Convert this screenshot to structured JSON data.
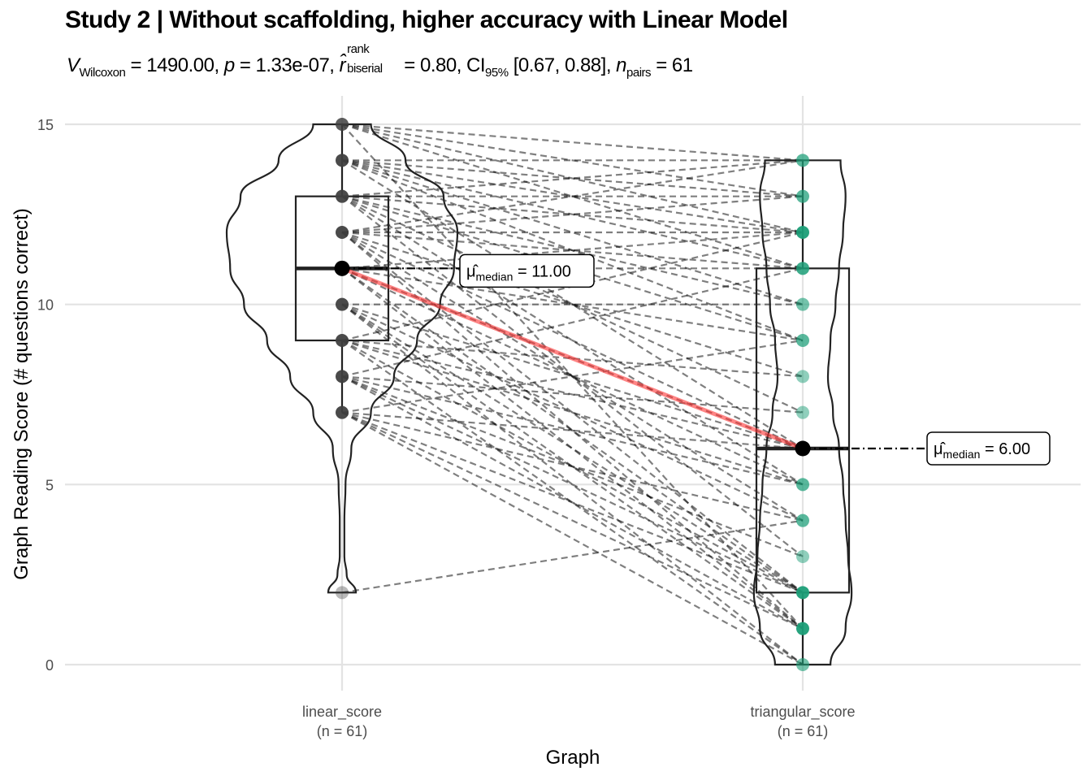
{
  "chart_data": {
    "type": "violin-box-paired",
    "title": "Study 2 | Without scaffolding, higher accuracy with Linear Model",
    "subtitle": {
      "v_symbol": "V",
      "v_sub": "Wilcoxon",
      "v_value": " = 1490.00, ",
      "p_symbol": "p",
      "p_value": " = 1.33e-07, ",
      "r_symbol": "r̂",
      "r_sup": "rank",
      "r_sub": "biserial",
      "r_value": " = 0.80, CI",
      "ci_sub": "95%",
      "ci_value": " [0.67, 0.88], ",
      "n_symbol": "n",
      "n_sub": "pairs",
      "n_value": " = 61"
    },
    "xlabel": "Graph",
    "ylabel": "Graph Reading Score (# questions correct)",
    "ylim": [
      -1.2,
      15.7
    ],
    "yticks": [
      0,
      5,
      10,
      15
    ],
    "categories": [
      {
        "name": "linear_score",
        "n_label": "(n = 61)"
      },
      {
        "name": "triangular_score",
        "n_label": "(n = 61)"
      }
    ],
    "groups": [
      {
        "name": "linear_score",
        "median": 11,
        "box": {
          "q1": 9,
          "median": 11,
          "q3": 13,
          "whisker_low": 7,
          "whisker_high": 15
        },
        "points": [
          2,
          7,
          8,
          9,
          10,
          11,
          12,
          13,
          14,
          15
        ],
        "violin_density": [
          [
            2,
            0.12
          ],
          [
            2.5,
            0.04
          ],
          [
            3,
            0.02
          ],
          [
            4,
            0.02
          ],
          [
            5,
            0.03
          ],
          [
            6,
            0.08
          ],
          [
            7,
            0.25
          ],
          [
            8,
            0.45
          ],
          [
            9,
            0.65
          ],
          [
            10,
            0.85
          ],
          [
            11,
            0.97
          ],
          [
            12,
            1.0
          ],
          [
            13,
            0.88
          ],
          [
            14,
            0.55
          ],
          [
            15,
            0.25
          ]
        ],
        "color": "#404040"
      },
      {
        "name": "triangular_score",
        "median": 6,
        "box": {
          "q1": 2,
          "median": 6,
          "q3": 11,
          "whisker_low": 0,
          "whisker_high": 14
        },
        "points": [
          0,
          1,
          2,
          3,
          4,
          5,
          6,
          7,
          8,
          9,
          10,
          11,
          12,
          13,
          14
        ],
        "violin_density": [
          [
            0,
            0.55
          ],
          [
            1,
            0.85
          ],
          [
            2,
            0.97
          ],
          [
            3,
            0.9
          ],
          [
            4,
            0.85
          ],
          [
            5,
            0.8
          ],
          [
            6,
            0.72
          ],
          [
            7,
            0.6
          ],
          [
            8,
            0.5
          ],
          [
            9,
            0.55
          ],
          [
            10,
            0.65
          ],
          [
            11,
            0.72
          ],
          [
            12,
            0.8
          ],
          [
            13,
            0.85
          ],
          [
            14,
            0.75
          ]
        ],
        "color": "#1b9e77"
      }
    ],
    "pairs": [
      [
        15,
        14
      ],
      [
        15,
        13
      ],
      [
        15,
        12
      ],
      [
        15,
        11
      ],
      [
        14,
        14
      ],
      [
        14,
        13
      ],
      [
        14,
        12
      ],
      [
        14,
        11
      ],
      [
        14,
        10
      ],
      [
        14,
        9
      ],
      [
        14,
        6
      ],
      [
        13,
        14
      ],
      [
        13,
        13
      ],
      [
        13,
        12
      ],
      [
        13,
        10
      ],
      [
        13,
        9
      ],
      [
        13,
        7
      ],
      [
        13,
        5
      ],
      [
        13,
        3
      ],
      [
        12,
        14
      ],
      [
        12,
        13
      ],
      [
        12,
        12
      ],
      [
        12,
        11
      ],
      [
        12,
        8
      ],
      [
        12,
        6
      ],
      [
        12,
        4
      ],
      [
        12,
        2
      ],
      [
        12,
        1
      ],
      [
        11,
        12
      ],
      [
        11,
        11
      ],
      [
        11,
        9
      ],
      [
        11,
        6
      ],
      [
        11,
        5
      ],
      [
        11,
        2
      ],
      [
        11,
        1
      ],
      [
        10,
        10
      ],
      [
        10,
        6
      ],
      [
        10,
        4
      ],
      [
        10,
        2
      ],
      [
        10,
        1
      ],
      [
        10,
        0
      ],
      [
        9,
        12
      ],
      [
        9,
        8
      ],
      [
        9,
        6
      ],
      [
        9,
        5
      ],
      [
        9,
        2
      ],
      [
        9,
        0
      ],
      [
        8,
        11
      ],
      [
        8,
        7
      ],
      [
        8,
        5
      ],
      [
        8,
        3
      ],
      [
        8,
        2
      ],
      [
        8,
        1
      ],
      [
        7,
        9
      ],
      [
        7,
        6
      ],
      [
        7,
        4
      ],
      [
        7,
        2
      ],
      [
        7,
        1
      ],
      [
        7,
        0
      ],
      [
        2,
        4
      ],
      [
        15,
        1
      ]
    ],
    "median_labels": [
      {
        "mu": "μ̂",
        "sub": "median",
        "value": " = 11.00"
      },
      {
        "mu": "μ̂",
        "sub": "median",
        "value": " = 6.00"
      }
    ],
    "median_line_color": "#ff3333",
    "grid": true
  }
}
